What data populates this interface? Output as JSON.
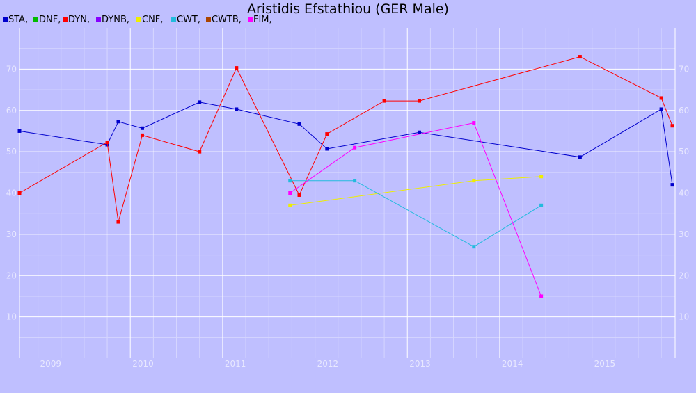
{
  "chart_data": {
    "type": "line",
    "title": "Aristidis Efstathiou (GER Male)",
    "xlabel": "",
    "ylabel": "",
    "xlim": [
      2008.8,
      2015.9
    ],
    "ylim": [
      0,
      80
    ],
    "x_ticks": [
      "2009",
      "2010",
      "2011",
      "2012",
      "2013",
      "2014",
      "2015"
    ],
    "y_ticks": [
      10,
      20,
      30,
      40,
      50,
      60,
      70
    ],
    "grid": true,
    "legend_position": "top-left",
    "legend": [
      {
        "name": "STA",
        "label": "STA,",
        "color": "#0000cc"
      },
      {
        "name": "DNF",
        "label": "DNF,",
        "color": "#00bb00"
      },
      {
        "name": "DYN",
        "label": "DYN,",
        "color": "#ff0000"
      },
      {
        "name": "DYNB",
        "label": "DYNB,",
        "color": "#8800ff"
      },
      {
        "name": "CNF",
        "label": "CNF,",
        "color": "#eeee00"
      },
      {
        "name": "CWT",
        "label": "CWT,",
        "color": "#22bbdd"
      },
      {
        "name": "CWTB",
        "label": "CWTB,",
        "color": "#aa4400"
      },
      {
        "name": "FIM",
        "label": "FIM,",
        "color": "#ff00ff"
      }
    ],
    "series": [
      {
        "name": "STA",
        "color": "#0000cc",
        "x": [
          2008.8,
          2009.75,
          2009.87,
          2010.13,
          2010.75,
          2011.15,
          2011.83,
          2012.13,
          2013.13,
          2014.87,
          2015.75,
          2015.87
        ],
        "y": [
          55,
          51.7,
          57.3,
          55.7,
          62,
          60.3,
          56.7,
          50.7,
          54.7,
          48.7,
          60.3,
          42
        ]
      },
      {
        "name": "DYN",
        "color": "#ff0000",
        "x": [
          2008.8,
          2009.75,
          2009.87,
          2010.13,
          2010.75,
          2011.15,
          2011.83,
          2012.13,
          2012.75,
          2013.13,
          2014.87,
          2015.75,
          2015.87
        ],
        "y": [
          40,
          52.3,
          33,
          54,
          50,
          70.3,
          39.5,
          54.3,
          62.3,
          62.3,
          73,
          63,
          56.3
        ]
      },
      {
        "name": "CNF",
        "color": "#eeee00",
        "x": [
          2011.73,
          2013.72,
          2014.45
        ],
        "y": [
          37,
          43,
          44
        ]
      },
      {
        "name": "CWT",
        "color": "#22bbdd",
        "x": [
          2011.73,
          2012.43,
          2013.72,
          2014.45
        ],
        "y": [
          43,
          43,
          27,
          37
        ]
      },
      {
        "name": "FIM",
        "color": "#ff00ff",
        "x": [
          2011.73,
          2012.43,
          2013.72,
          2014.45
        ],
        "y": [
          40,
          51,
          57,
          15
        ]
      }
    ]
  }
}
